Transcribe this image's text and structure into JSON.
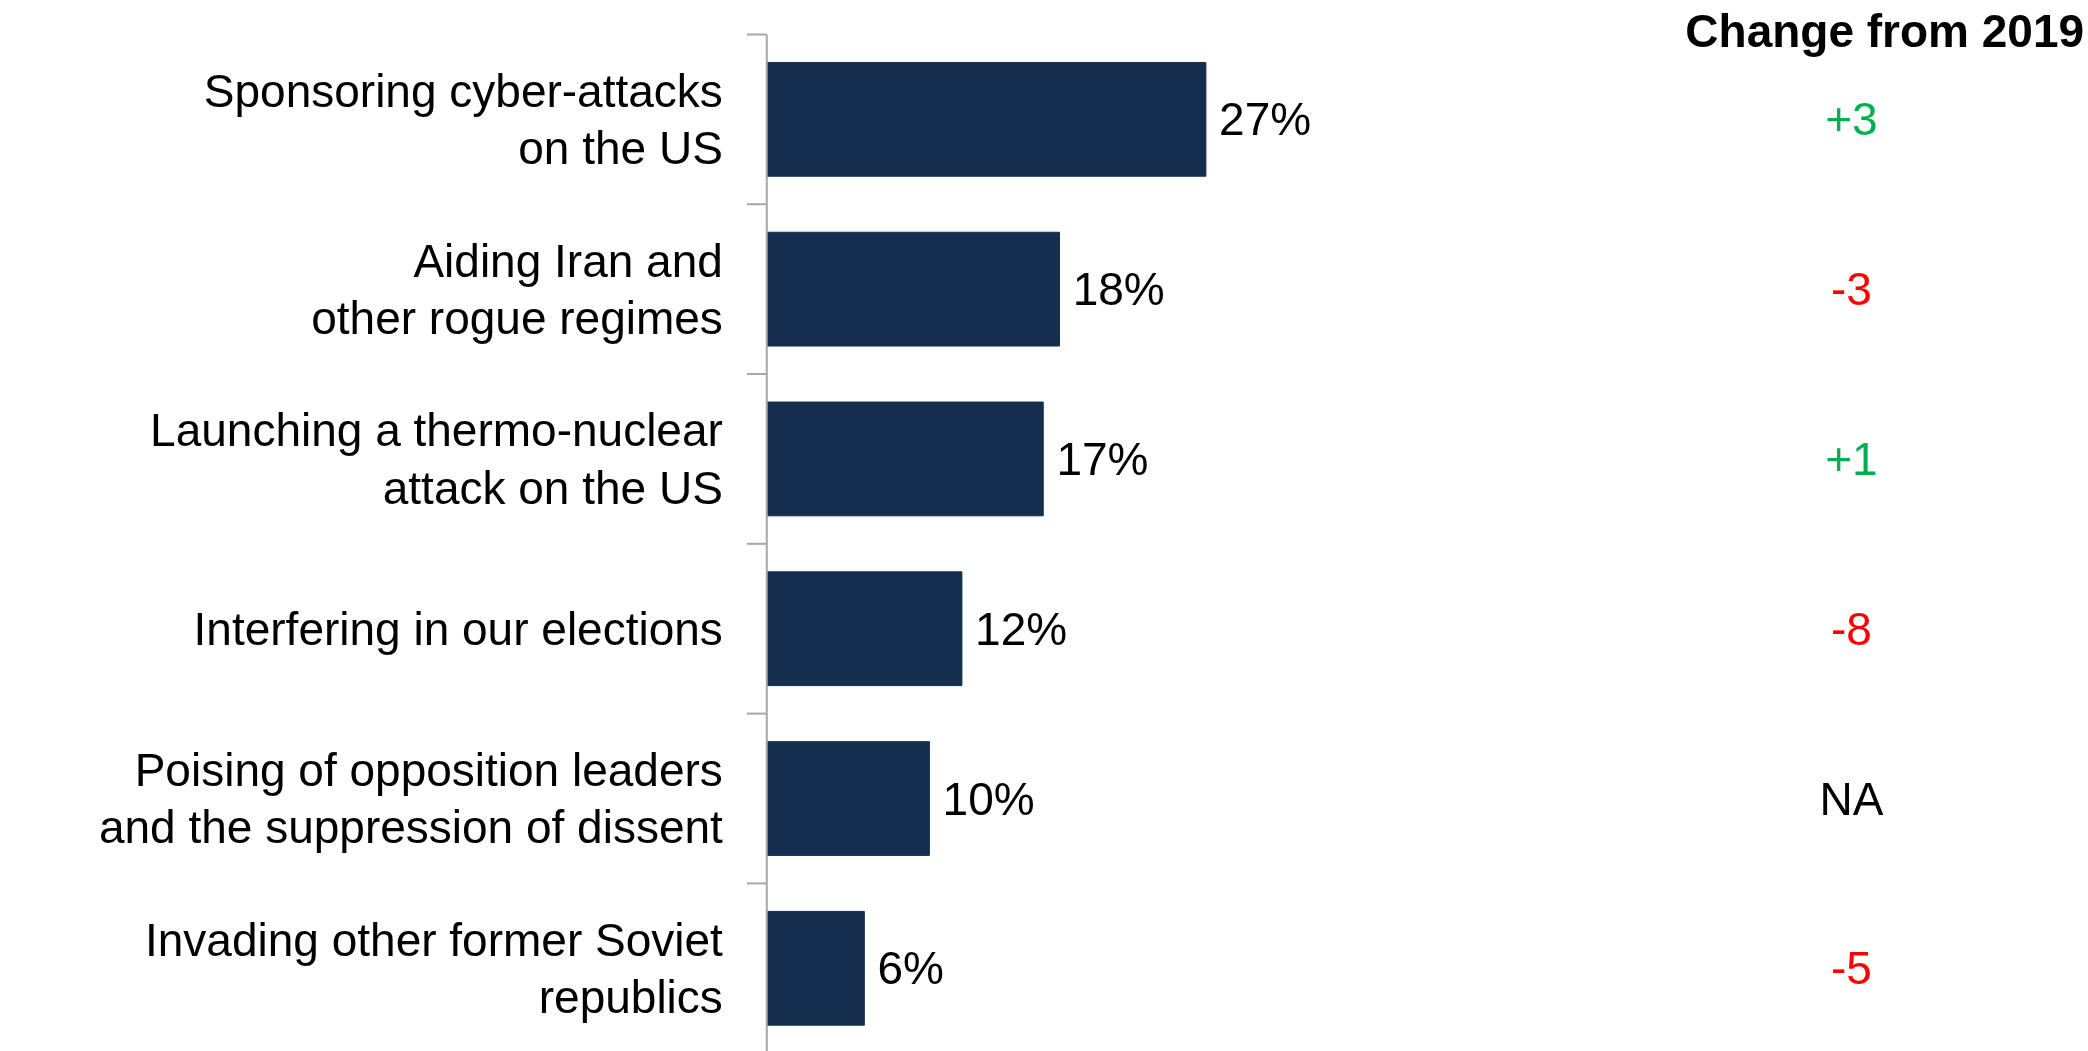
{
  "chart_data": {
    "type": "bar",
    "orientation": "horizontal",
    "categories": [
      "Sponsoring cyber-attacks\non the US",
      "Aiding Iran and\nother rogue regimes",
      "Launching a thermo-nuclear\nattack on the US",
      "Interfering in our elections",
      "Poising of opposition leaders\nand the suppression of dissent",
      "Invading other former Soviet\nrepublics"
    ],
    "values": [
      27,
      18,
      17,
      12,
      10,
      6
    ],
    "value_labels": [
      "27%",
      "18%",
      "17%",
      "12%",
      "10%",
      "6%"
    ],
    "color": "#152e50",
    "annotations": [
      "Change from 2019",
      "+3",
      "-3",
      "+1",
      "-8",
      "NA",
      "-5"
    ]
  }
}
